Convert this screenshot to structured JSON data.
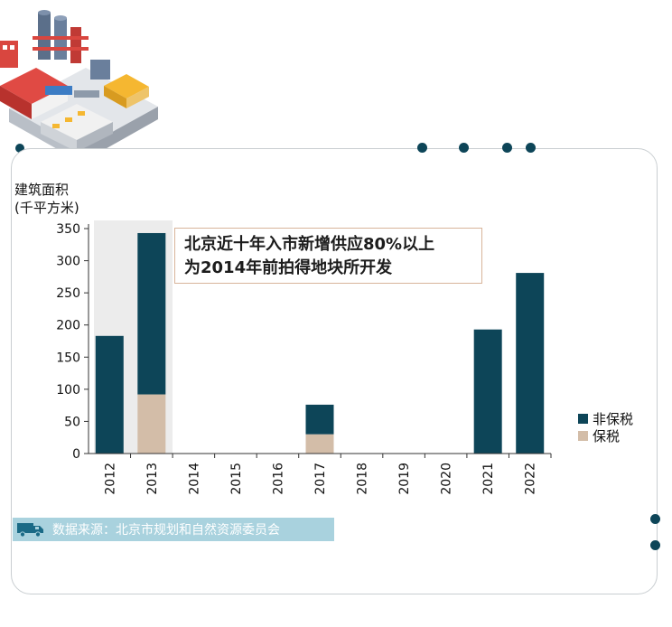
{
  "unit_label": {
    "line1": "建筑面积",
    "line2": "(千平方米)"
  },
  "annotation": {
    "line1": "北京近十年入市新增供应80%以上",
    "line2": "为2014年前拍得地块所开发"
  },
  "source": {
    "text": "数据来源：北京市规划和自然资源委员会",
    "icon": "truck-icon"
  },
  "colors": {
    "non_bonded": "#0d4558",
    "bonded": "#d3bda8",
    "highlight_band": "#ececec",
    "accent_dot": "#0d4558"
  },
  "chart_data": {
    "type": "bar",
    "stacked": true,
    "categories": [
      "2012",
      "2013",
      "2014",
      "2015",
      "2016",
      "2017",
      "2018",
      "2019",
      "2020",
      "2021",
      "2022"
    ],
    "series": [
      {
        "name": "保税",
        "values": [
          0,
          92,
          0,
          0,
          0,
          30,
          0,
          0,
          0,
          0,
          0
        ]
      },
      {
        "name": "非保税",
        "values": [
          183,
          251,
          0,
          0,
          0,
          46,
          0,
          0,
          0,
          193,
          281
        ]
      }
    ],
    "highlighted_categories": [
      "2012",
      "2013"
    ],
    "ylim": [
      0,
      350
    ],
    "yticks": [
      0,
      50,
      100,
      150,
      200,
      250,
      300,
      350
    ],
    "legend": {
      "position": "right",
      "order": [
        "非保税",
        "保税"
      ]
    },
    "grid": false
  }
}
